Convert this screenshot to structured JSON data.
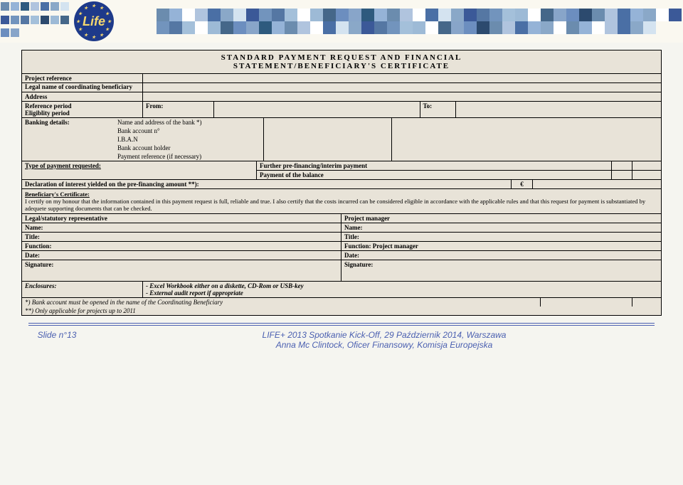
{
  "header": {
    "logo_text": "Life",
    "title_line1": "STANDARD PAYMENT REQUEST AND FINANCIAL",
    "title_line2": "STATEMENT/BENEFICIARY'S CERTIFICATE"
  },
  "labels": {
    "project_ref": "Project reference",
    "legal_name": "Legal name of coordinating beneficiary",
    "address": "Address",
    "ref_period": "Reference period",
    "elig_period": "Eligiblity period",
    "from": "From:",
    "to": "To:",
    "banking": "Banking details:",
    "bank_name": "Name and address of the bank *)",
    "bank_acct": "Bank account n°",
    "iban": "I.B.A.N",
    "holder": "Bank account holder",
    "pay_ref": "Payment reference (if necessary)",
    "type_req": "Type of payment requested:",
    "further": "Further pre-financing/interim payment",
    "balance": "Payment of the balance",
    "declaration": "Declaration of interest yielded on the pre-financing amount **):",
    "euro": "€",
    "cert_title": "Beneficiary's Certificate:",
    "cert_body": "I certify on my honour that the information contained  in this payment request is full, reliable and true. I also certify that the costs incurred can be considered eligible in accordance with the applicable rules and that this request for payment is substantiated by adequete supporting documents that can be checked.",
    "legal_rep": "Legal/statutory representative",
    "proj_mgr": "Project manager",
    "name": "Name:",
    "title": "Title:",
    "function": "Function:",
    "function_pm": "Function: Project manager",
    "date": "Date:",
    "signature": "Signature:",
    "enclosures": "Enclosures:",
    "enc1": "- Excel Workbook either on a diskette, CD-Rom or USB-key",
    "enc2": "- External audit report if appropriate",
    "foot1": "*) Bank account must be opened in the name of the Coordinating Beneficiary",
    "foot2": "**) Only applicable for projects up to 2011"
  },
  "footer": {
    "slide": "Slide n°13",
    "line1": "LIFE+ 2013 Spotkanie Kick-Off, 29 Październik 2014, Warszawa",
    "line2": "Anna Mc Clintock, Oficer Finansowy, Komisja Europejska"
  },
  "palette": {
    "squares_left": [
      "#6b8cae",
      "#95b3d7",
      "#2e5a7e",
      "#b0c4de",
      "#4a6fa5",
      "#8aa8c8",
      "#d4e3f0",
      "#3b5998",
      "#7294bd",
      "#5577a3",
      "#a4c0da",
      "#2c4a6e",
      "#9dbad6",
      "#456789",
      "#6c8ebf",
      "#88a5c9"
    ],
    "squares_right": [
      "#6b8cae",
      "#95b3d7",
      "#ffffff",
      "#b0c4de",
      "#4a6fa5",
      "#8aa8c8",
      "#d4e3f0",
      "#3b5998",
      "#7294bd",
      "#5577a3",
      "#a4c0da",
      "#ffffff",
      "#9dbad6",
      "#456789",
      "#6c8ebf",
      "#88a5c9",
      "#2e5a7e",
      "#95b3d7",
      "#6b8cae",
      "#b0c4de",
      "#ffffff",
      "#4a6fa5",
      "#d4e3f0",
      "#8aa8c8",
      "#3b5998",
      "#5577a3",
      "#7294bd",
      "#a4c0da",
      "#9dbad6",
      "#ffffff",
      "#456789",
      "#88a5c9",
      "#6c8ebf",
      "#2c4a6e",
      "#6b8cae",
      "#b0c4de",
      "#4a6fa5",
      "#95b3d7",
      "#8aa8c8",
      "#ffffff"
    ]
  }
}
